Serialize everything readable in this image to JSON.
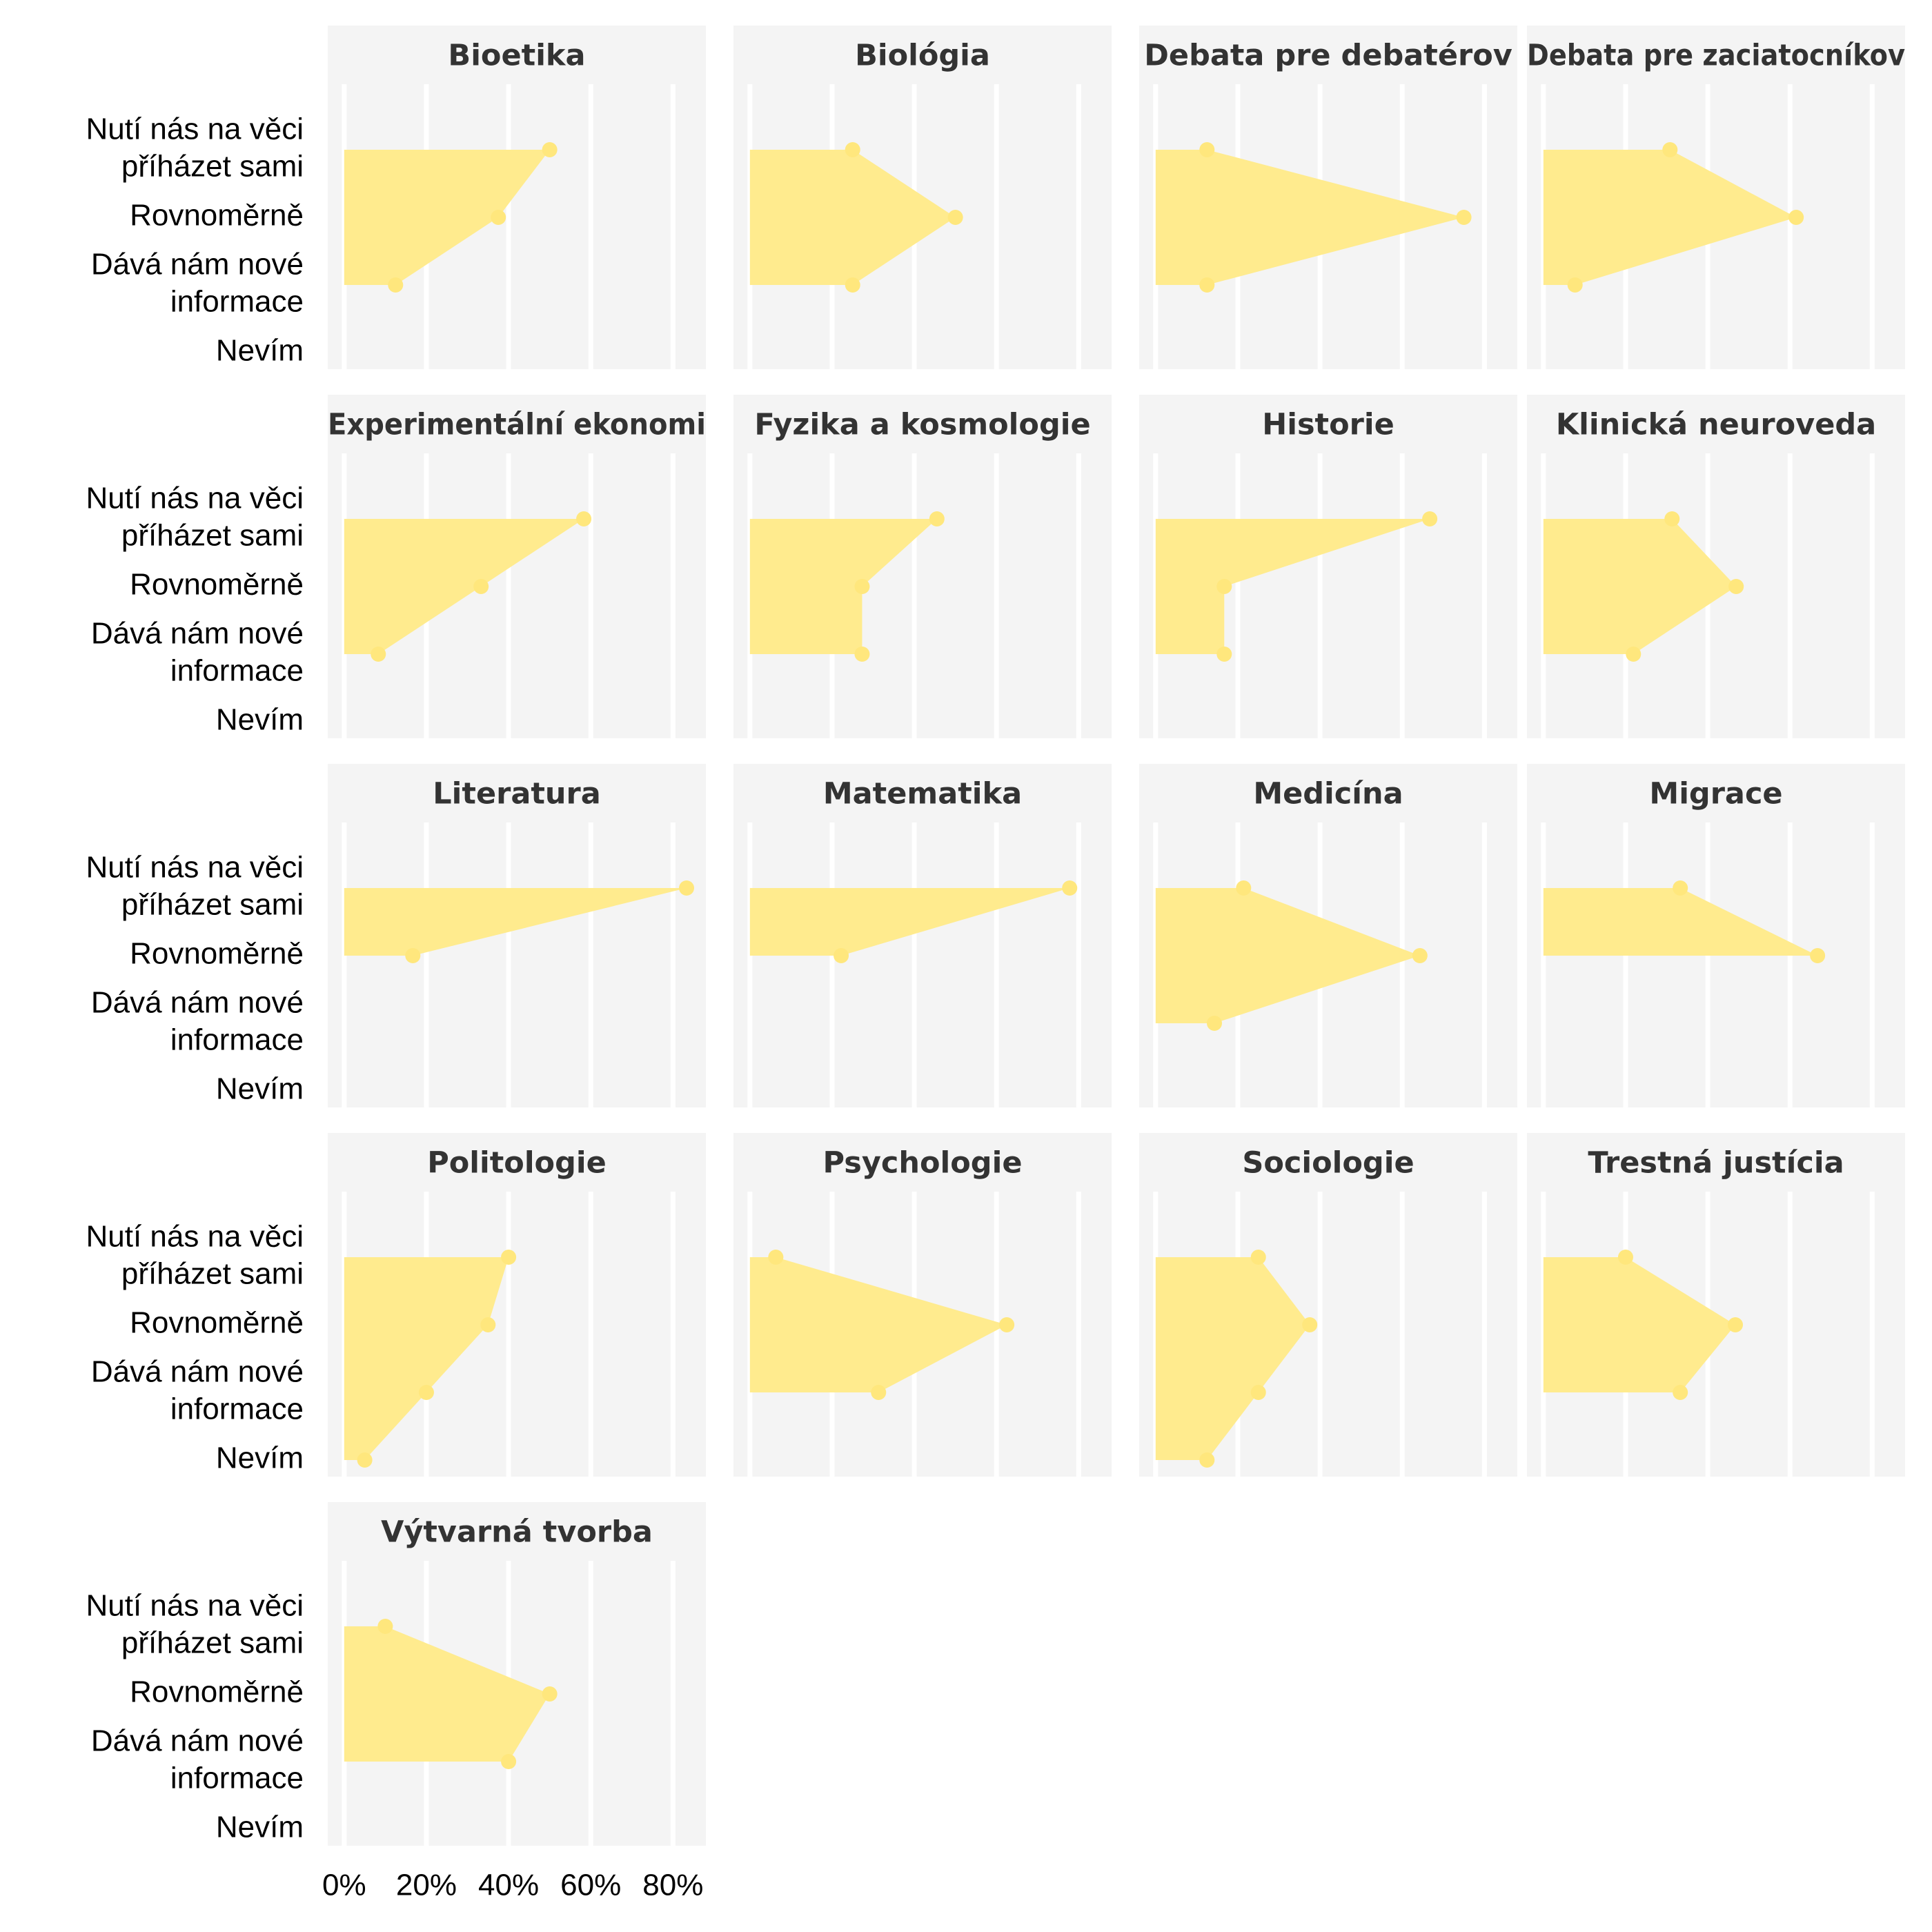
{
  "chart_data": {
    "type": "area",
    "orientation": "horizontal",
    "x_unit": "percent",
    "xlim": [
      -4,
      88
    ],
    "x_ticks": [
      0,
      20,
      40,
      60,
      80
    ],
    "x_tick_labels": [
      "0%",
      "20%",
      "40%",
      "60%",
      "80%"
    ],
    "categories": [
      "Nutí nás na věci přícházet sami",
      "Rovnoměrně",
      "Dává nám nové informace",
      "Nevím"
    ],
    "category_labels": [
      [
        "Nutí nás na věci",
        "příházet sami"
      ],
      [
        "Rovnoměrně"
      ],
      [
        "Dává nám nové",
        "informace"
      ],
      [
        "Nevím"
      ]
    ],
    "grid": true,
    "colors": {
      "fill": "#FFEB8E",
      "point": "#FFE77D",
      "panel": "#F4F4F4",
      "grid": "#FFFFFF",
      "strip_text": "#333333",
      "axis_text": "#000000"
    },
    "panels": [
      {
        "title": "Bioetika",
        "values": [
          50,
          37.5,
          12.5
        ]
      },
      {
        "title": "Biológia",
        "values": [
          25,
          50,
          25
        ]
      },
      {
        "title": "Debata pre debatérov",
        "values": [
          12.5,
          75,
          12.5
        ]
      },
      {
        "title": "Debata pre zaciatocníkov",
        "values": [
          30.8,
          61.5,
          7.7
        ]
      },
      {
        "title": "Experimentální ekonomi",
        "values": [
          58.3,
          33.3,
          8.3
        ]
      },
      {
        "title": "Fyzika a kosmologie",
        "values": [
          45.5,
          27.3,
          27.3
        ]
      },
      {
        "title": "Historie",
        "values": [
          66.7,
          16.7,
          16.7
        ]
      },
      {
        "title": "Klinická neuroveda",
        "values": [
          31.3,
          46.9,
          21.9
        ]
      },
      {
        "title": "Literatura",
        "values": [
          83.3,
          16.7
        ]
      },
      {
        "title": "Matematika",
        "values": [
          77.8,
          22.2
        ]
      },
      {
        "title": "Medicína",
        "values": [
          21.4,
          64.3,
          14.3
        ]
      },
      {
        "title": "Migrace",
        "values": [
          33.3,
          66.7
        ]
      },
      {
        "title": "Politologie",
        "values": [
          40,
          35,
          20,
          5
        ]
      },
      {
        "title": "Psychologie",
        "values": [
          6.3,
          62.5,
          31.3
        ]
      },
      {
        "title": "Sociologie",
        "values": [
          25,
          37.5,
          25,
          12.5
        ]
      },
      {
        "title": "Trestná justícia",
        "values": [
          20,
          46.7,
          33.3
        ]
      },
      {
        "title": "Výtvarná tvorba",
        "values": [
          10,
          50,
          40
        ]
      }
    ]
  }
}
